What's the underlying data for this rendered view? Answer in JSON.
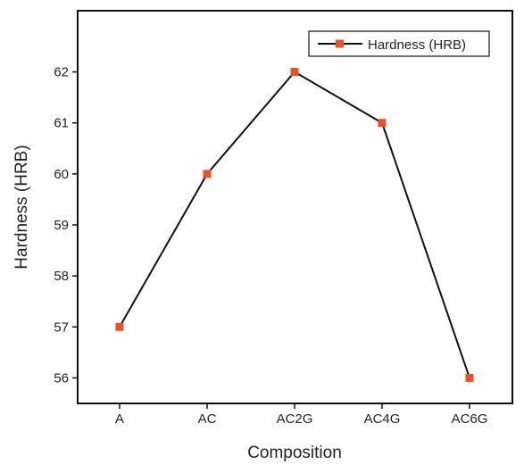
{
  "chart_data": {
    "type": "line",
    "categories": [
      "A",
      "AC",
      "AC2G",
      "AC4G",
      "AC6G"
    ],
    "series": [
      {
        "name": "Hardness (HRB)",
        "values": [
          57,
          60,
          62,
          61,
          56
        ]
      }
    ],
    "xlabel": "Composition",
    "ylabel": "Hardness (HRB)",
    "ylim": [
      55.5,
      63.2
    ],
    "yticks": [
      56,
      57,
      58,
      59,
      60,
      61,
      62
    ],
    "grid": false,
    "legend_position": "top-right",
    "colors": {
      "line": "#111111",
      "marker": "#e8502a",
      "axis": "#111111"
    }
  }
}
